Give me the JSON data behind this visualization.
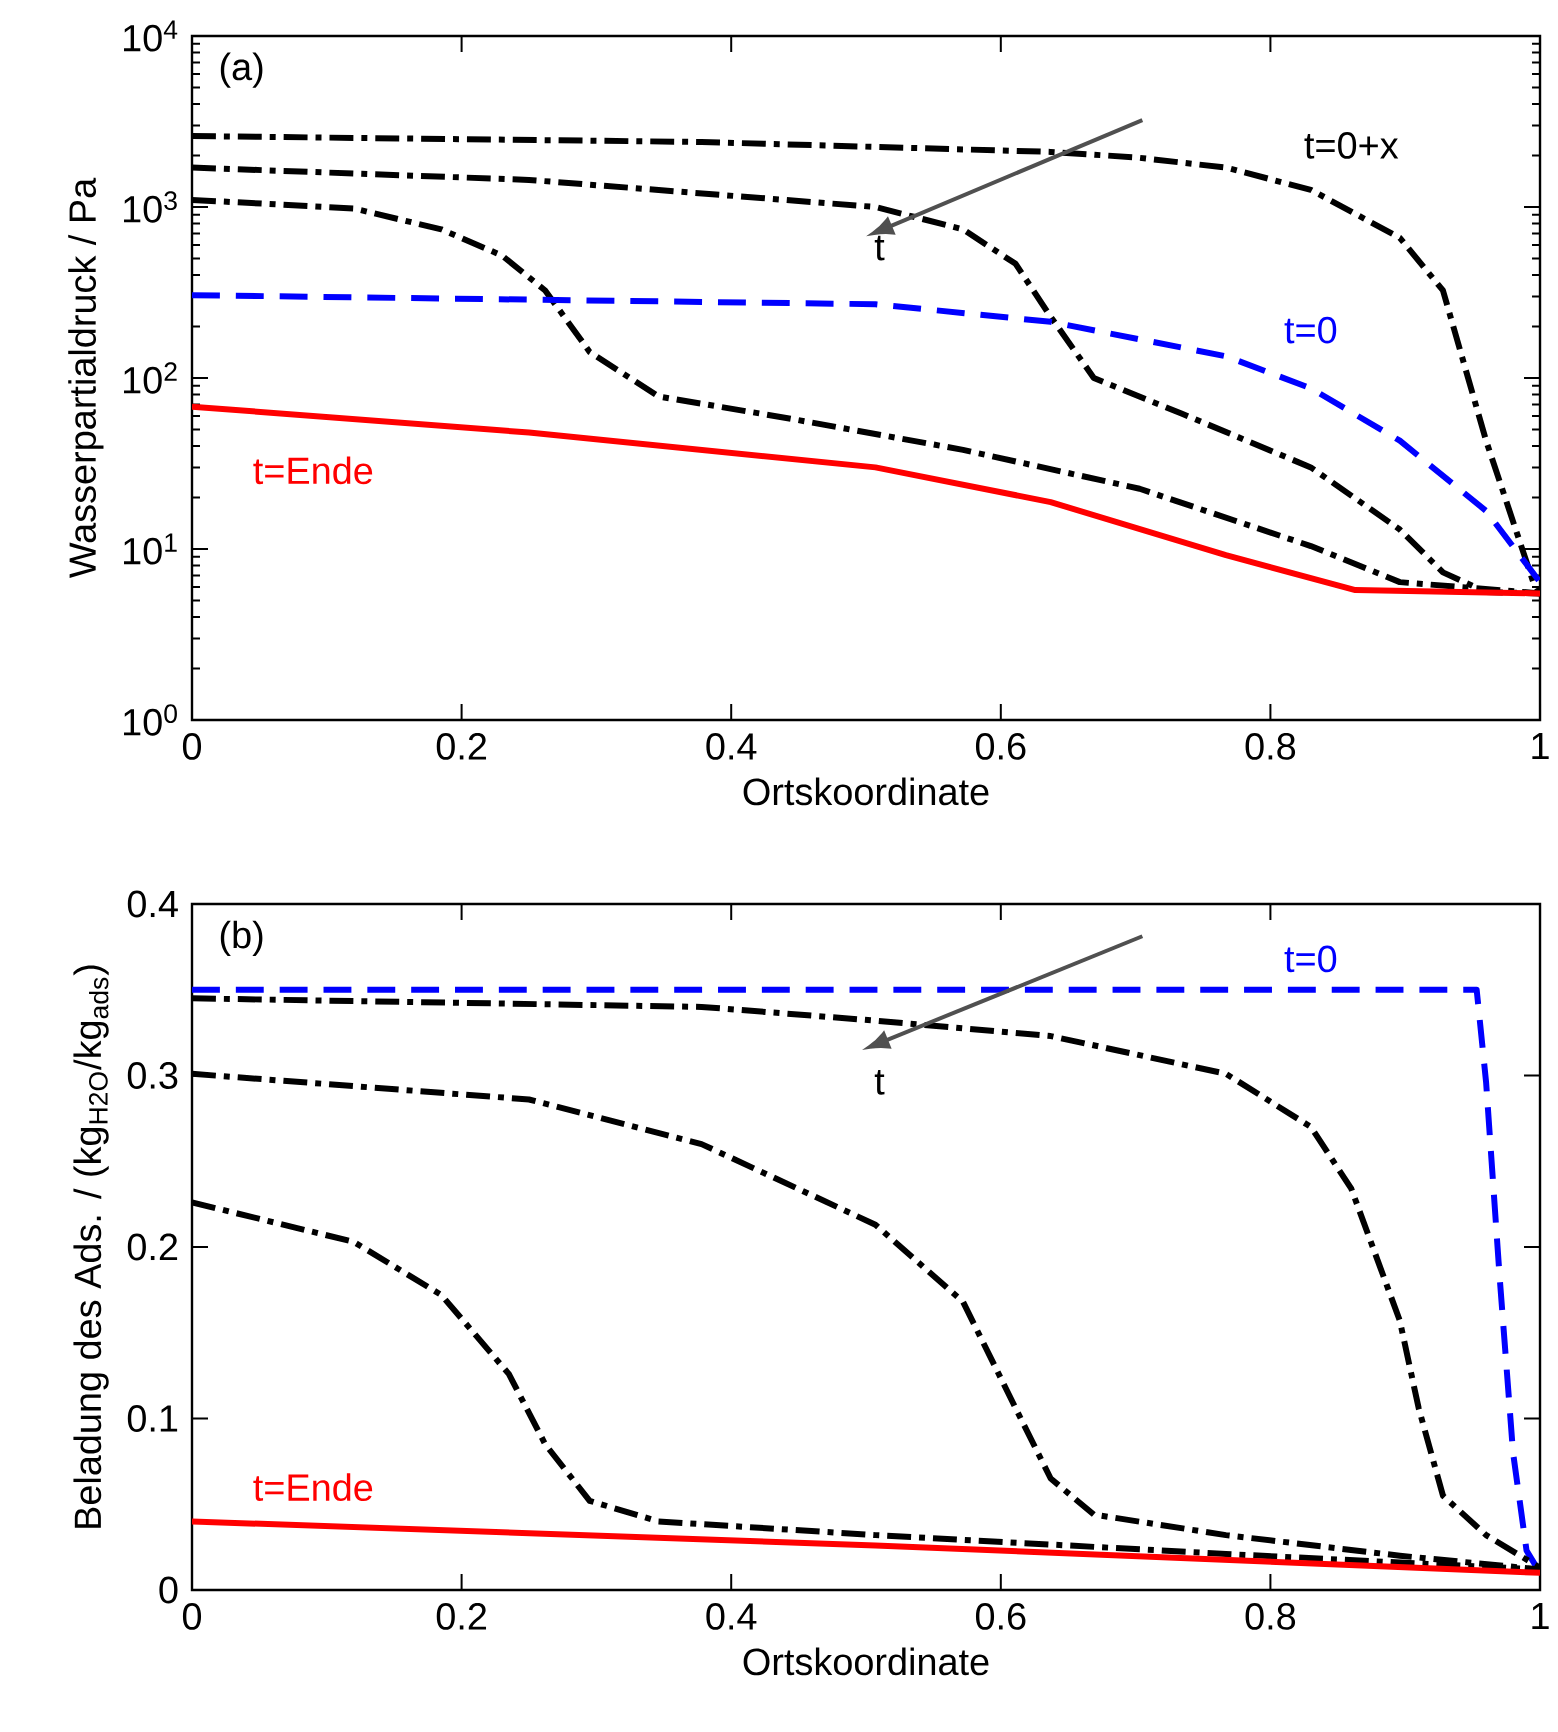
{
  "chart_data": [
    {
      "type": "line",
      "xlabel": "Ortskoordinate",
      "ylabel": "Wasserpartialdruck / Pa",
      "log": "y",
      "xlim": [
        0,
        1
      ],
      "ylim": [
        1,
        10000
      ],
      "xticks": [
        0,
        0.2,
        0.4,
        0.6,
        0.8,
        1
      ],
      "yticks": [
        {
          "value": 1,
          "label": "10$^{0}$"
        },
        {
          "value": 10,
          "label": "10$^{1}$"
        },
        {
          "value": 100,
          "label": "10$^{2}$"
        },
        {
          "value": 1000,
          "label": "10$^{3}$"
        },
        {
          "value": 10000,
          "label": "10$^{4}$"
        }
      ],
      "annotations": [
        "(a)",
        "t=0+x",
        "t",
        "t=0",
        "t=Ende"
      ],
      "series": [
        {
          "color": "#000000",
          "line_style": "dashdot",
          "x": [
            0,
            0.378,
            0.637,
            0.7,
            0.767,
            0.83,
            0.896,
            0.928,
            0.96,
            0.995,
            1
          ],
          "values": [
            2600,
            2400,
            2100,
            1950,
            1700,
            1260,
            660,
            325,
            43,
            6.4,
            5.5
          ]
        },
        {
          "color": "#000000",
          "line_style": "dashdot",
          "x": [
            0,
            0.25,
            0.507,
            0.572,
            0.611,
            0.637,
            0.669,
            0.734,
            0.83,
            0.896,
            0.928,
            0.96,
            1
          ],
          "values": [
            1700,
            1440,
            1000,
            740,
            465,
            228,
            100,
            62,
            30,
            13,
            7.3,
            5.6,
            5.5
          ]
        },
        {
          "color": "#000000",
          "line_style": "dashdot",
          "x": [
            0,
            0.12,
            0.185,
            0.23,
            0.262,
            0.295,
            0.346,
            0.443,
            0.572,
            0.703,
            0.83,
            0.896,
            1
          ],
          "values": [
            1100,
            980,
            740,
            520,
            325,
            142,
            78,
            58,
            38,
            22.5,
            10.4,
            6.4,
            5.5
          ]
        },
        {
          "color": "#0000ff",
          "line_style": "dashed",
          "x": [
            0,
            0.507,
            0.637,
            0.767,
            0.83,
            0.896,
            0.96,
            1
          ],
          "values": [
            305,
            270,
            213,
            134,
            87,
            43,
            16.7,
            6.4
          ]
        },
        {
          "color": "#ff0000",
          "line_style": "solid",
          "x": [
            0,
            0.25,
            0.507,
            0.637,
            0.767,
            0.863,
            1
          ],
          "values": [
            68,
            48,
            30,
            18.8,
            9.2,
            5.75,
            5.5
          ]
        }
      ]
    },
    {
      "type": "line",
      "xlabel": "Ortskoordinate",
      "ylabel": "Beladung des Ads. / (kg$_{H2O}$/kg$_{ads}$)",
      "xlim": [
        0,
        1
      ],
      "ylim": [
        0,
        0.4
      ],
      "xticks": [
        0,
        0.2,
        0.4,
        0.6,
        0.8,
        1
      ],
      "yticks": [
        0,
        0.1,
        0.2,
        0.3,
        0.4
      ],
      "annotations": [
        "(b)",
        "t=0",
        "t",
        "t=Ende"
      ],
      "series": [
        {
          "color": "#0000ff",
          "line_style": "dashed",
          "x": [
            0,
            0.953,
            0.96,
            0.97,
            0.98,
            0.99,
            1
          ],
          "values": [
            0.35,
            0.35,
            0.296,
            0.183,
            0.08,
            0.023,
            0.01
          ]
        },
        {
          "color": "#000000",
          "line_style": "dashdot",
          "x": [
            0,
            0.378,
            0.507,
            0.637,
            0.767,
            0.83,
            0.86,
            0.896,
            0.91,
            0.928,
            0.96,
            1
          ],
          "values": [
            0.345,
            0.34,
            0.332,
            0.323,
            0.301,
            0.27,
            0.234,
            0.157,
            0.106,
            0.055,
            0.032,
            0.013
          ]
        },
        {
          "color": "#000000",
          "line_style": "dashdot",
          "x": [
            0,
            0.25,
            0.378,
            0.507,
            0.572,
            0.611,
            0.637,
            0.669,
            0.767,
            0.896,
            1
          ],
          "values": [
            0.301,
            0.286,
            0.26,
            0.213,
            0.168,
            0.106,
            0.065,
            0.044,
            0.032,
            0.02,
            0.012
          ]
        },
        {
          "color": "#000000",
          "line_style": "dashdot",
          "x": [
            0,
            0.12,
            0.185,
            0.235,
            0.262,
            0.295,
            0.346,
            0.507,
            0.767,
            1
          ],
          "values": [
            0.226,
            0.203,
            0.172,
            0.126,
            0.085,
            0.052,
            0.04,
            0.032,
            0.021,
            0.012
          ]
        },
        {
          "color": "#ff0000",
          "line_style": "solid",
          "x": [
            0,
            0.507,
            1
          ],
          "values": [
            0.04,
            0.026,
            0.01
          ]
        }
      ]
    }
  ]
}
